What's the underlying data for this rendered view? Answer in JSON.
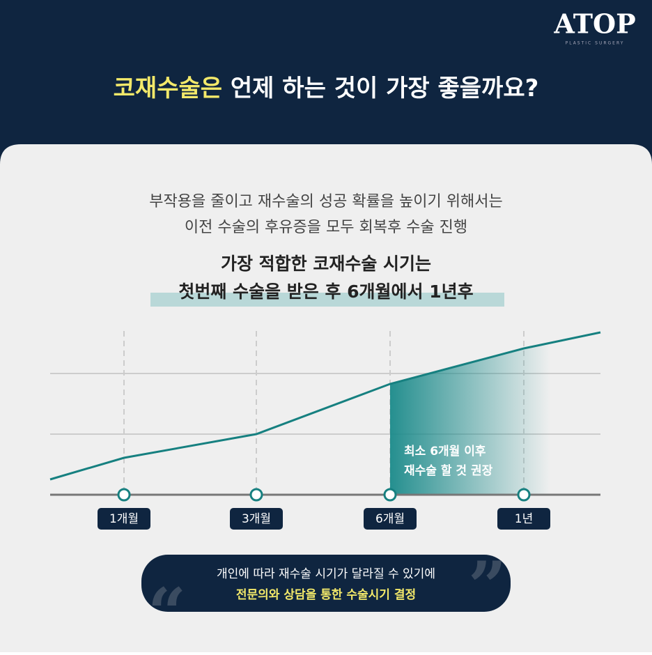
{
  "brand": {
    "logo": "ATOP",
    "tagline": "PLASTIC SURGERY"
  },
  "header": {
    "title_highlight": "코재수술은",
    "title_rest": "언제 하는 것이 가장 좋을까요?"
  },
  "intro": {
    "lines": [
      "부작용을 줄이고 재수술의 성공 확률을 높이기 위해서는",
      "이전 수술의 후유증을 모두 회복후 수술 진행"
    ]
  },
  "emphasis": {
    "lines": [
      "가장 적합한 코재수술 시기는",
      "첫번째 수술을 받은 후 6개월에서 1년후"
    ]
  },
  "timeline": {
    "labels": [
      "1개월",
      "3개월",
      "6개월",
      "1년"
    ],
    "callout": [
      "최소 6개월 이후",
      "재수술 할 것 권장"
    ]
  },
  "note": {
    "lines": [
      "개인에 따라 재수술 시기가 달라질 수 있기에",
      "전문의와 상담을 통한 수술시기 결정"
    ]
  }
}
